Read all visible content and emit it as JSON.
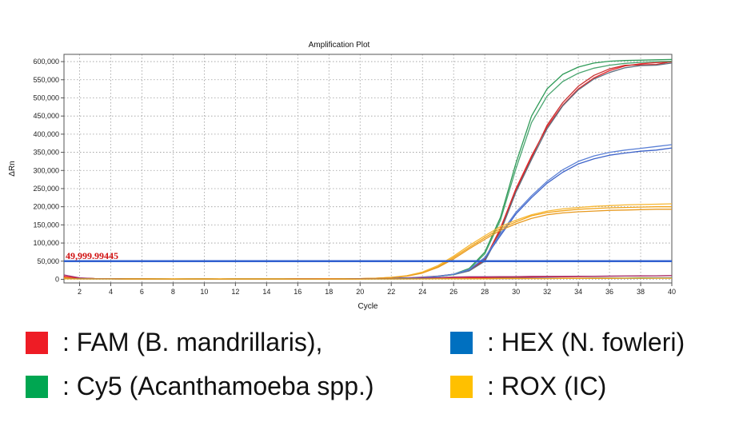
{
  "chart_data": {
    "type": "line",
    "title": "Amplification Plot",
    "xlabel": "Cycle",
    "ylabel": "ΔRn",
    "xlim": [
      1,
      40
    ],
    "ylim": [
      -10000,
      620000
    ],
    "xticks": [
      2,
      4,
      6,
      8,
      10,
      12,
      14,
      16,
      18,
      20,
      22,
      24,
      26,
      28,
      30,
      32,
      34,
      36,
      38,
      40
    ],
    "yticks": [
      0,
      50000,
      100000,
      150000,
      200000,
      250000,
      300000,
      350000,
      400000,
      450000,
      500000,
      550000,
      600000
    ],
    "ytick_labels": [
      "0",
      "50,000",
      "100,000",
      "150,000",
      "200,000",
      "250,000",
      "300,000",
      "350,000",
      "400,000",
      "450,000",
      "500,000",
      "550,000",
      "600,000"
    ],
    "grid": true,
    "threshold": {
      "value": 49999.99445,
      "label": "49,999.99445",
      "color": "#3060d0"
    },
    "x": [
      1,
      2,
      3,
      4,
      5,
      6,
      7,
      8,
      9,
      10,
      11,
      12,
      13,
      14,
      15,
      16,
      17,
      18,
      19,
      20,
      21,
      22,
      23,
      24,
      25,
      26,
      27,
      28,
      29,
      30,
      31,
      32,
      33,
      34,
      35,
      36,
      37,
      38,
      39,
      40
    ],
    "series": [
      {
        "color": "#e8262b",
        "values": [
          5000,
          3000,
          2000,
          2000,
          1500,
          1500,
          1000,
          500,
          1000,
          1000,
          500,
          1000,
          1000,
          1000,
          1000,
          1000,
          1000,
          1000,
          1500,
          2000,
          2500,
          3000,
          4000,
          6000,
          9000,
          14000,
          25000,
          55000,
          140000,
          250000,
          340000,
          420000,
          480000,
          525000,
          555000,
          575000,
          588000,
          594000,
          597000,
          599000
        ]
      },
      {
        "color": "#c83030",
        "values": [
          4000,
          2500,
          2000,
          1500,
          1500,
          1000,
          1000,
          500,
          500,
          1000,
          500,
          1000,
          1000,
          1000,
          1000,
          1000,
          1000,
          1000,
          1500,
          1500,
          2000,
          3000,
          3500,
          5500,
          8500,
          13000,
          24000,
          52000,
          135000,
          245000,
          335000,
          425000,
          487000,
          532000,
          562000,
          580000,
          590000,
          591000,
          592000,
          600000
        ]
      },
      {
        "color": "#607080",
        "values": [
          3000,
          2000,
          2000,
          1500,
          1000,
          1000,
          1000,
          500,
          500,
          1000,
          500,
          1000,
          1000,
          1000,
          1000,
          1000,
          1000,
          1000,
          1000,
          1500,
          2000,
          2500,
          3500,
          5500,
          8000,
          13000,
          23000,
          50000,
          130000,
          240000,
          330000,
          415000,
          478000,
          522000,
          552000,
          570000,
          583000,
          589000,
          590000,
          596000
        ]
      },
      {
        "color": "#2e9a57",
        "values": [
          3000,
          2500,
          2000,
          1500,
          1500,
          1000,
          1000,
          500,
          1000,
          1000,
          500,
          1000,
          1000,
          1000,
          1000,
          1000,
          1000,
          1000,
          1500,
          1500,
          2000,
          2500,
          3500,
          5000,
          8000,
          14000,
          30000,
          75000,
          170000,
          320000,
          450000,
          525000,
          565000,
          585000,
          596000,
          601000,
          603000,
          604000,
          605000,
          606000
        ]
      },
      {
        "color": "#4aa570",
        "values": [
          3000,
          2500,
          2000,
          1500,
          1500,
          1000,
          1000,
          500,
          1000,
          1000,
          500,
          1000,
          1000,
          1000,
          1000,
          1000,
          1000,
          1000,
          1500,
          1500,
          2000,
          2500,
          3500,
          5000,
          8000,
          13000,
          28000,
          70000,
          162000,
          305000,
          432000,
          505000,
          545000,
          568000,
          582000,
          590000,
          595000,
          598000,
          600000,
          601000
        ]
      },
      {
        "color": "#3d63c9",
        "values": [
          3000,
          2000,
          1500,
          1500,
          1000,
          1000,
          1000,
          500,
          1000,
          1000,
          500,
          1000,
          1000,
          1000,
          1000,
          1000,
          1000,
          1000,
          1500,
          1500,
          2000,
          2500,
          3500,
          5000,
          8500,
          14000,
          26000,
          58000,
          120000,
          180000,
          225000,
          265000,
          295000,
          318000,
          332000,
          342000,
          348000,
          353000,
          356000,
          362000
        ]
      },
      {
        "color": "#5b80d6",
        "values": [
          3000,
          2000,
          1500,
          1500,
          1000,
          1000,
          1000,
          500,
          1000,
          1000,
          500,
          1000,
          1000,
          1000,
          1000,
          1000,
          1000,
          1000,
          1500,
          1500,
          2000,
          2500,
          3500,
          5000,
          8500,
          14000,
          27000,
          60000,
          125000,
          185000,
          230000,
          270000,
          302000,
          325000,
          340000,
          350000,
          356000,
          361000,
          366000,
          371000
        ]
      },
      {
        "color": "#f2a419",
        "values": [
          4000,
          3000,
          2000,
          2000,
          1500,
          1500,
          1000,
          1000,
          1000,
          1000,
          1000,
          1000,
          1000,
          1000,
          1000,
          1000,
          1000,
          1500,
          1500,
          2000,
          3000,
          5000,
          9000,
          18000,
          35000,
          60000,
          88000,
          115000,
          140000,
          158000,
          175000,
          184000,
          189000,
          193000,
          195000,
          197000,
          198000,
          199000,
          200000,
          200000
        ]
      },
      {
        "color": "#f7b733",
        "values": [
          4000,
          3000,
          2000,
          2000,
          1500,
          1500,
          1000,
          1000,
          1000,
          1000,
          1000,
          1000,
          1000,
          1000,
          1000,
          1000,
          1000,
          1500,
          1500,
          2000,
          3000,
          5500,
          10000,
          20000,
          38000,
          64000,
          93000,
          120000,
          145000,
          163000,
          178000,
          188000,
          194000,
          198000,
          201000,
          203000,
          205000,
          206000,
          207000,
          208000
        ]
      },
      {
        "color": "#e89a20",
        "values": [
          3500,
          2500,
          2000,
          1500,
          1500,
          1000,
          1000,
          1000,
          1000,
          1000,
          1000,
          1000,
          1000,
          1000,
          1000,
          1000,
          1000,
          1500,
          1500,
          2000,
          3000,
          5000,
          8500,
          17000,
          33000,
          56000,
          84000,
          110000,
          135000,
          153000,
          168000,
          178000,
          183000,
          186000,
          188000,
          190000,
          191000,
          192000,
          193000,
          193000
        ]
      },
      {
        "color": "#e8262b",
        "values": [
          8000,
          3000,
          2000,
          1500,
          1000,
          1000,
          500,
          500,
          500,
          500,
          500,
          500,
          500,
          500,
          500,
          1000,
          1000,
          1000,
          1000,
          1500,
          1500,
          2000,
          2000,
          3000,
          3000,
          3500,
          4000,
          4500,
          5000,
          5500,
          6000,
          6500,
          7000,
          7500,
          8000,
          8500,
          9000,
          9000,
          9500,
          10000
        ]
      },
      {
        "color": "#a03070",
        "values": [
          12000,
          4000,
          2000,
          1500,
          1000,
          1000,
          500,
          500,
          500,
          500,
          500,
          500,
          500,
          500,
          500,
          1000,
          1000,
          1000,
          1000,
          1500,
          1500,
          2000,
          2500,
          3500,
          4500,
          6000,
          7000,
          7000,
          7500,
          7500,
          8000,
          8000,
          8000,
          8500,
          8500,
          9000,
          9000,
          9500,
          9500,
          10000
        ]
      },
      {
        "color": "#2e9a57",
        "values": [
          2000,
          1500,
          1000,
          1000,
          1000,
          1000,
          500,
          500,
          500,
          500,
          500,
          500,
          500,
          500,
          500,
          500,
          500,
          500,
          1000,
          1000,
          1000,
          1000,
          1500,
          1500,
          2000,
          2000,
          2000,
          2000,
          2500,
          2500,
          2500,
          3000,
          3000,
          3000,
          3500,
          3500,
          3500,
          4000,
          4000,
          4000
        ]
      },
      {
        "color": "#3d63c9",
        "values": [
          2000,
          1000,
          1000,
          1000,
          500,
          500,
          500,
          500,
          500,
          500,
          500,
          500,
          500,
          500,
          500,
          500,
          500,
          500,
          500,
          1000,
          1000,
          1000,
          1000,
          1500,
          1500,
          1500,
          2000,
          2000,
          2000,
          2000,
          2500,
          2500,
          2500,
          2500,
          3000,
          3000,
          3000,
          3000,
          3500,
          3500
        ]
      },
      {
        "color": "#f2a419",
        "values": [
          1500,
          1000,
          1000,
          1000,
          500,
          500,
          500,
          500,
          500,
          500,
          500,
          500,
          500,
          500,
          500,
          500,
          500,
          500,
          500,
          500,
          1000,
          1000,
          1000,
          1000,
          1500,
          1500,
          1500,
          1500,
          2000,
          2000,
          2000,
          2000,
          2500,
          2500,
          2500,
          2500,
          3000,
          3000,
          3000,
          3000
        ]
      }
    ]
  },
  "legend": [
    {
      "label": ": FAM (B. mandrillaris),",
      "color": "#ee1c25"
    },
    {
      "label": ": HEX (N. fowleri)",
      "color": "#0070c0"
    },
    {
      "label": ": Cy5 (Acanthamoeba spp.)",
      "color": "#00a651"
    },
    {
      "label": ": ROX (IC)",
      "color": "#ffc000"
    }
  ]
}
